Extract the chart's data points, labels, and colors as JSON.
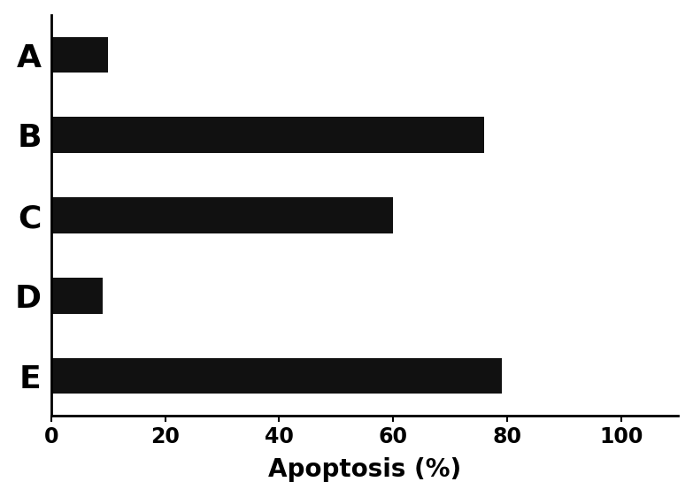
{
  "categories": [
    "A",
    "B",
    "C",
    "D",
    "E"
  ],
  "values": [
    10,
    76,
    60,
    9,
    79
  ],
  "bar_color": "#111111",
  "bar_height": 0.45,
  "xlabel": "Apoptosis (%)",
  "xlim": [
    0,
    110
  ],
  "xticks": [
    0,
    20,
    40,
    60,
    80,
    100
  ],
  "xlabel_fontsize": 20,
  "tick_fontsize": 17,
  "label_fontsize": 26,
  "background_color": "#ffffff",
  "spine_linewidth": 2.0,
  "figsize": [
    7.83,
    5.62
  ],
  "dpi": 100
}
